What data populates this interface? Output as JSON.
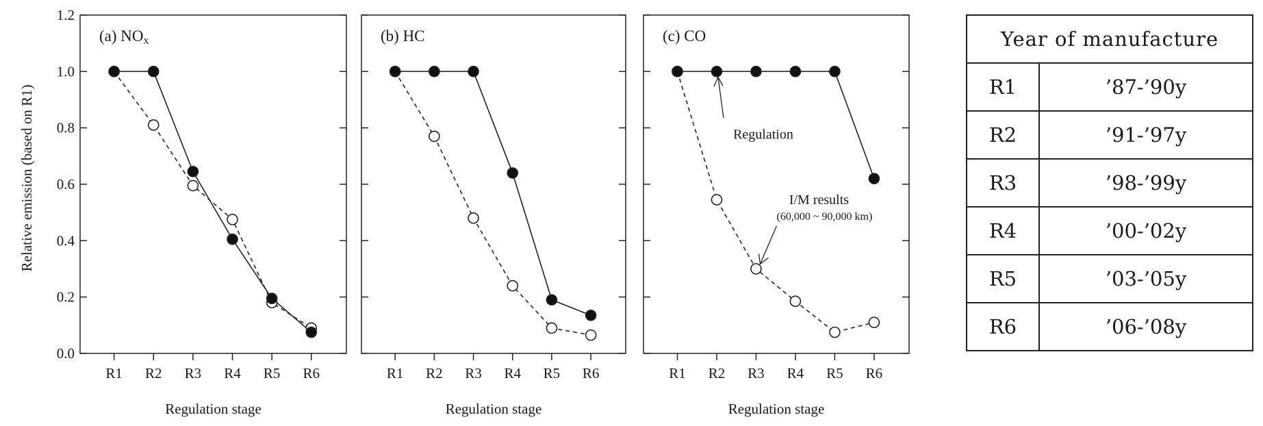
{
  "chart_data": [
    {
      "type": "line",
      "title": "(a) NO",
      "title_subscript": "x",
      "ylabel": "Relative emission (based on R1)",
      "xlabel": "Regulation stage",
      "categories": [
        "R1",
        "R2",
        "R3",
        "R4",
        "R5",
        "R6"
      ],
      "ylim": [
        0,
        1.2
      ],
      "yticks": [
        "0.0",
        "0.2",
        "0.4",
        "0.6",
        "0.8",
        "1.0",
        "1.2"
      ],
      "series": [
        {
          "style": "solid-filled",
          "values": [
            1.0,
            1.0,
            0.645,
            0.405,
            0.195,
            0.075
          ]
        },
        {
          "style": "dashed-open",
          "values": [
            1.0,
            0.81,
            0.595,
            0.475,
            0.18,
            0.09
          ]
        }
      ]
    },
    {
      "type": "line",
      "title": "(b) HC",
      "xlabel": "Regulation stage",
      "categories": [
        "R1",
        "R2",
        "R3",
        "R4",
        "R5",
        "R6"
      ],
      "ylim": [
        0,
        1.2
      ],
      "series": [
        {
          "style": "solid-filled",
          "values": [
            1.0,
            1.0,
            1.0,
            0.64,
            0.19,
            0.135
          ]
        },
        {
          "style": "dashed-open",
          "values": [
            1.0,
            0.77,
            0.48,
            0.24,
            0.09,
            0.065
          ]
        }
      ]
    },
    {
      "type": "line",
      "title": "(c) CO",
      "xlabel": "Regulation stage",
      "categories": [
        "R1",
        "R2",
        "R3",
        "R4",
        "R5",
        "R6"
      ],
      "ylim": [
        0,
        1.2
      ],
      "series": [
        {
          "style": "solid-filled",
          "values": [
            1.0,
            1.0,
            1.0,
            1.0,
            1.0,
            0.62
          ]
        },
        {
          "style": "dashed-open",
          "values": [
            1.0,
            0.545,
            0.3,
            0.185,
            0.075,
            0.11
          ]
        }
      ],
      "annotations": [
        {
          "text": "Regulation"
        },
        {
          "text": "I/M results",
          "subtext": "(60,000 ~ 90,000 km)"
        }
      ]
    }
  ],
  "table": {
    "header": "Year of manufacture",
    "rows": [
      {
        "stage": "R1",
        "years": "’87-’90y"
      },
      {
        "stage": "R2",
        "years": "’91-’97y"
      },
      {
        "stage": "R3",
        "years": "’98-’99y"
      },
      {
        "stage": "R4",
        "years": "’00-’02y"
      },
      {
        "stage": "R5",
        "years": "’03-’05y"
      },
      {
        "stage": "R6",
        "years": "’06-’08y"
      }
    ]
  }
}
